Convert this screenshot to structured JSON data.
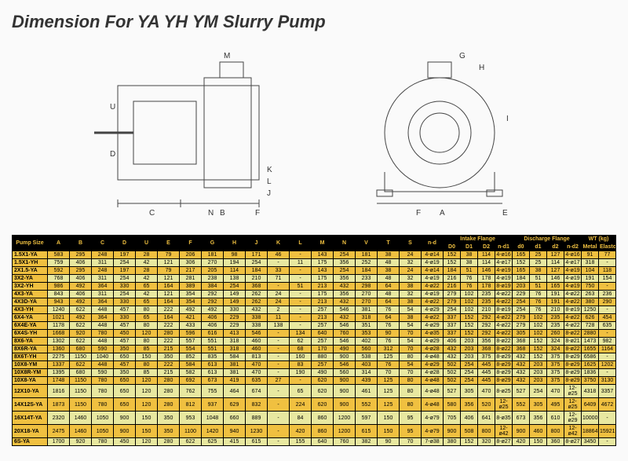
{
  "title": "Dimension For YA YH YM Slurry Pump",
  "diagram_labels": [
    "A",
    "B",
    "C",
    "D",
    "E",
    "F",
    "G",
    "H",
    "I",
    "J",
    "K",
    "L",
    "M",
    "N",
    "U"
  ],
  "table": {
    "header_groups": [
      {
        "label": "Pump Size",
        "span": 1
      },
      {
        "label": "A",
        "span": 1
      },
      {
        "label": "B",
        "span": 1
      },
      {
        "label": "C",
        "span": 1
      },
      {
        "label": "D",
        "span": 1
      },
      {
        "label": "U",
        "span": 1
      },
      {
        "label": "E",
        "span": 1
      },
      {
        "label": "F",
        "span": 1
      },
      {
        "label": "G",
        "span": 1
      },
      {
        "label": "H",
        "span": 1
      },
      {
        "label": "J",
        "span": 1
      },
      {
        "label": "K",
        "span": 1
      },
      {
        "label": "L",
        "span": 1
      },
      {
        "label": "M",
        "span": 1
      },
      {
        "label": "N",
        "span": 1
      },
      {
        "label": "V",
        "span": 1
      },
      {
        "label": "T",
        "span": 1
      },
      {
        "label": "S",
        "span": 1
      },
      {
        "label": "n-d",
        "span": 1
      },
      {
        "label": "Intake Flange",
        "span": 4
      },
      {
        "label": "Discharge Flange",
        "span": 4
      },
      {
        "label": "WT (kg)",
        "span": 2
      }
    ],
    "sub_headers": [
      "D0",
      "D1",
      "D2",
      "n-d1",
      "d0",
      "d1",
      "d2",
      "n-d2",
      "Metal",
      "Elastomer"
    ],
    "rows": [
      [
        "1.5X1-YA",
        "583",
        "295",
        "248",
        "197",
        "28",
        "79",
        "206",
        "181",
        "98",
        "171",
        "46",
        "-",
        "143",
        "254",
        "181",
        "38",
        "24",
        "4-ø14",
        "152",
        "38",
        "114",
        "4-ø16",
        "165",
        "25",
        "127",
        "4-ø16",
        "91",
        "77"
      ],
      [
        "1.5X1-YH",
        "759",
        "406",
        "311",
        "254",
        "42",
        "121",
        "306",
        "270",
        "194",
        "254",
        "-",
        "11",
        "175",
        "356",
        "252",
        "48",
        "32",
        "4-ø19",
        "152",
        "38",
        "114",
        "4-ø17",
        "152",
        "25",
        "114",
        "4-ø17",
        "318",
        "-"
      ],
      [
        "2X1.5-YA",
        "592",
        "295",
        "248",
        "197",
        "28",
        "79",
        "217",
        "205",
        "114",
        "184",
        "33",
        "-",
        "143",
        "254",
        "184",
        "38",
        "24",
        "4-ø14",
        "184",
        "51",
        "146",
        "4-ø19",
        "165",
        "38",
        "127",
        "4-ø19",
        "104",
        "118"
      ],
      [
        "3X2-YA",
        "768",
        "406",
        "311",
        "254",
        "42",
        "121",
        "281",
        "238",
        "138",
        "210",
        "71",
        "-",
        "175",
        "356",
        "233",
        "48",
        "32",
        "4-ø19",
        "216",
        "76",
        "178",
        "4-ø19",
        "184",
        "51",
        "146",
        "4-ø19",
        "191",
        "154"
      ],
      [
        "3X2-YH",
        "986",
        "492",
        "364",
        "330",
        "65",
        "164",
        "389",
        "384",
        "254",
        "368",
        "-",
        "51",
        "213",
        "432",
        "298",
        "64",
        "38",
        "4-ø22",
        "216",
        "76",
        "178",
        "8-ø19",
        "203",
        "51",
        "165",
        "4-ø19",
        "750",
        "-"
      ],
      [
        "4X3-YA",
        "843",
        "406",
        "311",
        "254",
        "42",
        "121",
        "354",
        "292",
        "149",
        "262",
        "24",
        "-",
        "175",
        "356",
        "270",
        "48",
        "32",
        "4-ø19",
        "279",
        "102",
        "235",
        "4-ø22",
        "229",
        "76",
        "191",
        "4-ø22",
        "263",
        "236"
      ],
      [
        "4X3D-YA",
        "943",
        "492",
        "364",
        "330",
        "65",
        "164",
        "354",
        "292",
        "149",
        "262",
        "24",
        "-",
        "213",
        "432",
        "270",
        "64",
        "38",
        "4-ø22",
        "279",
        "102",
        "235",
        "4-ø22",
        "254",
        "76",
        "191",
        "4-ø22",
        "380",
        "290"
      ],
      [
        "4X3-YH",
        "1240",
        "622",
        "448",
        "457",
        "80",
        "222",
        "492",
        "492",
        "330",
        "432",
        "2",
        "-",
        "257",
        "546",
        "381",
        "76",
        "54",
        "4-ø29",
        "254",
        "102",
        "210",
        "8-ø19",
        "254",
        "76",
        "210",
        "8-ø19",
        "1250",
        "-"
      ],
      [
        "6X4-YA",
        "1021",
        "492",
        "364",
        "330",
        "65",
        "164",
        "421",
        "406",
        "229",
        "338",
        "11",
        "-",
        "213",
        "432",
        "318",
        "64",
        "38",
        "4-ø22",
        "337",
        "152",
        "292",
        "4-ø22",
        "279",
        "102",
        "235",
        "4-ø22",
        "626",
        "454"
      ],
      [
        "6X4E-YA",
        "1178",
        "622",
        "448",
        "457",
        "80",
        "222",
        "433",
        "406",
        "229",
        "338",
        "138",
        "-",
        "257",
        "546",
        "351",
        "76",
        "54",
        "4-ø29",
        "337",
        "152",
        "292",
        "4-ø22",
        "279",
        "102",
        "235",
        "4-ø22",
        "728",
        "635"
      ],
      [
        "6X4S-YH",
        "1668",
        "920",
        "780",
        "450",
        "120",
        "280",
        "596",
        "616",
        "413",
        "546",
        "-",
        "134",
        "640",
        "760",
        "353",
        "90",
        "70",
        "4-ø35",
        "337",
        "152",
        "292",
        "4-ø22",
        "305",
        "102",
        "260",
        "8-ø22",
        "2880",
        "-"
      ],
      [
        "8X6-YA",
        "1302",
        "622",
        "448",
        "457",
        "80",
        "222",
        "557",
        "551",
        "318",
        "460",
        "-",
        "62",
        "257",
        "546",
        "402",
        "76",
        "54",
        "4-ø29",
        "406",
        "203",
        "356",
        "8-ø22",
        "368",
        "152",
        "324",
        "8-ø21",
        "1473",
        "982"
      ],
      [
        "8X6R-YA",
        "1360",
        "680",
        "590",
        "350",
        "85",
        "215",
        "554",
        "551",
        "318",
        "460",
        "-",
        "68",
        "170",
        "490",
        "560",
        "312",
        "70",
        "4-ø28",
        "432",
        "203",
        "368",
        "8-ø22",
        "368",
        "152",
        "324",
        "8-ø22",
        "1655",
        "1164"
      ],
      [
        "8X6T-YH",
        "2275",
        "1150",
        "1040",
        "650",
        "150",
        "350",
        "852",
        "835",
        "584",
        "813",
        "-",
        "160",
        "880",
        "900",
        "538",
        "125",
        "80",
        "4-ø48",
        "432",
        "203",
        "375",
        "8-ø29",
        "432",
        "152",
        "375",
        "8-ø29",
        "6586",
        "-"
      ],
      [
        "10X8-YM",
        "1337",
        "622",
        "448",
        "457",
        "80",
        "222",
        "584",
        "613",
        "381",
        "470",
        "-",
        "83",
        "257",
        "546",
        "403",
        "76",
        "54",
        "4-ø29",
        "502",
        "254",
        "445",
        "8-ø29",
        "432",
        "203",
        "375",
        "8-ø29",
        "1625",
        "1202"
      ],
      [
        "10X8R-YM",
        "1395",
        "680",
        "590",
        "350",
        "85",
        "215",
        "582",
        "613",
        "381",
        "470",
        "-",
        "190",
        "490",
        "560",
        "314",
        "70",
        "70",
        "4-ø28",
        "502",
        "254",
        "445",
        "8-ø29",
        "432",
        "203",
        "375",
        "8-ø29",
        "1836",
        "-"
      ],
      [
        "10X8-YA",
        "1748",
        "1150",
        "780",
        "650",
        "120",
        "280",
        "692",
        "673",
        "419",
        "635",
        "27",
        "-",
        "620",
        "900",
        "439",
        "125",
        "80",
        "4-ø48",
        "502",
        "254",
        "445",
        "8-ø29",
        "432",
        "203",
        "375",
        "8-ø29",
        "3750",
        "3130"
      ],
      [
        "12X10-YA",
        "1816",
        "1150",
        "780",
        "650",
        "120",
        "280",
        "762",
        "755",
        "464",
        "674",
        "-",
        "65",
        "620",
        "900",
        "461",
        "125",
        "80",
        "4-ø48",
        "527",
        "305",
        "470",
        "8-ø25",
        "527",
        "254",
        "470",
        "12-ø25",
        "4318",
        "3357"
      ],
      [
        "14X12S-YA",
        "1873",
        "1150",
        "780",
        "650",
        "120",
        "280",
        "812",
        "937",
        "629",
        "832",
        "-",
        "224",
        "620",
        "900",
        "552",
        "125",
        "80",
        "4-ø48",
        "580",
        "356",
        "520",
        "12-ø25",
        "552",
        "305",
        "495",
        "12-ø25",
        "6409",
        "4672"
      ],
      [
        "16X14T-YA",
        "2320",
        "1460",
        "1050",
        "900",
        "150",
        "350",
        "953",
        "1048",
        "660",
        "889",
        "-",
        "84",
        "860",
        "1200",
        "597",
        "150",
        "95",
        "4-ø79",
        "705",
        "406",
        "641",
        "8-ø35",
        "673",
        "356",
        "610",
        "12-ø29",
        "10000",
        "-"
      ],
      [
        "20X18-YA",
        "2475",
        "1460",
        "1050",
        "900",
        "150",
        "350",
        "1100",
        "1420",
        "940",
        "1230",
        "-",
        "420",
        "860",
        "1200",
        "615",
        "150",
        "95",
        "4-ø79",
        "900",
        "508",
        "800",
        "12-ø42",
        "900",
        "460",
        "800",
        "12-ø42",
        "18864",
        "15921"
      ],
      [
        "6S-YA",
        "1700",
        "920",
        "780",
        "450",
        "120",
        "280",
        "622",
        "625",
        "415",
        "615",
        "-",
        "155",
        "640",
        "760",
        "382",
        "90",
        "70",
        "7-ø38",
        "380",
        "152",
        "320",
        "8-ø27",
        "420",
        "150",
        "360",
        "8-ø27",
        "3450",
        "-"
      ]
    ]
  },
  "colors": {
    "header_bg": "#000000",
    "header_fg": "#f0c040",
    "row_odd": "#f0c040",
    "row_even": "#e8e8a0"
  }
}
